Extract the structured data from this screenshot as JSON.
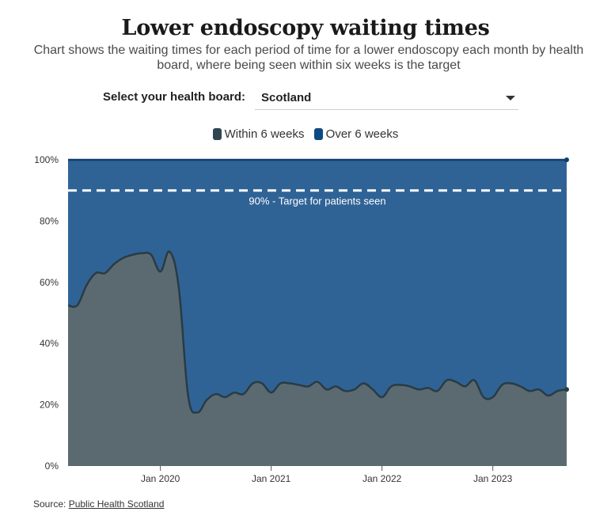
{
  "title": "Lower endoscopy waiting times",
  "subtitle": "Chart shows the waiting times for each period of time for a lower endoscopy each month by health board, where being seen within six weeks is the target",
  "selector": {
    "label": "Select your health board:",
    "value": "Scotland"
  },
  "legend": [
    {
      "label": "Within 6 weeks",
      "color": "#2f4650"
    },
    {
      "label": "Over 6 weeks",
      "color": "#0d4a80"
    }
  ],
  "source": {
    "prefix": "Source:",
    "link_text": "Public Health Scotland"
  },
  "colors": {
    "within_fill": "#5a6a70",
    "over_fill": "#2f6396",
    "within_line": "#2a3b44",
    "over_line": "#0d3f6e"
  },
  "chart_data": {
    "type": "area",
    "stacked": true,
    "x_start": "2019-03",
    "x_end": "2023-09",
    "xticks": [
      {
        "label": "Jan 2020",
        "date": "2020-01"
      },
      {
        "label": "Jan 2021",
        "date": "2021-01"
      },
      {
        "label": "Jan 2022",
        "date": "2022-01"
      },
      {
        "label": "Jan 2023",
        "date": "2023-01"
      }
    ],
    "yticks": [
      "0%",
      "20%",
      "40%",
      "60%",
      "80%",
      "100%"
    ],
    "ylim": [
      0,
      100
    ],
    "grid": false,
    "legend_position": "top",
    "target": {
      "value": 90,
      "label": "90% - Target for patients seen"
    },
    "series": [
      {
        "name": "Within 6 weeks",
        "x": [
          "2019-03",
          "2019-04",
          "2019-05",
          "2019-06",
          "2019-07",
          "2019-08",
          "2019-09",
          "2019-10",
          "2019-11",
          "2019-12",
          "2020-01",
          "2020-02",
          "2020-03",
          "2020-04",
          "2020-05",
          "2020-06",
          "2020-07",
          "2020-08",
          "2020-09",
          "2020-10",
          "2020-11",
          "2020-12",
          "2021-01",
          "2021-02",
          "2021-03",
          "2021-04",
          "2021-05",
          "2021-06",
          "2021-07",
          "2021-08",
          "2021-09",
          "2021-10",
          "2021-11",
          "2021-12",
          "2022-01",
          "2022-02",
          "2022-03",
          "2022-04",
          "2022-05",
          "2022-06",
          "2022-07",
          "2022-08",
          "2022-09",
          "2022-10",
          "2022-11",
          "2022-12",
          "2023-01",
          "2023-02",
          "2023-03",
          "2023-04",
          "2023-05",
          "2023-06",
          "2023-07",
          "2023-08",
          "2023-09"
        ],
        "values": [
          52.5,
          52.5,
          59,
          63,
          63,
          66,
          68,
          69,
          69.5,
          69,
          63.5,
          70,
          58,
          23,
          17.5,
          21.5,
          23.5,
          22.5,
          24,
          23.5,
          27,
          27,
          24,
          27,
          27,
          26.5,
          26,
          27.5,
          25,
          26,
          24.5,
          25,
          27,
          25,
          22.5,
          26,
          26.5,
          26,
          25,
          25.5,
          24.5,
          28,
          27.5,
          26,
          28,
          22.5,
          22.5,
          26.5,
          27,
          26,
          24.5,
          25,
          23,
          24.5,
          25
        ]
      },
      {
        "name": "Over 6 weeks",
        "values_note": ""
      }
    ]
  }
}
